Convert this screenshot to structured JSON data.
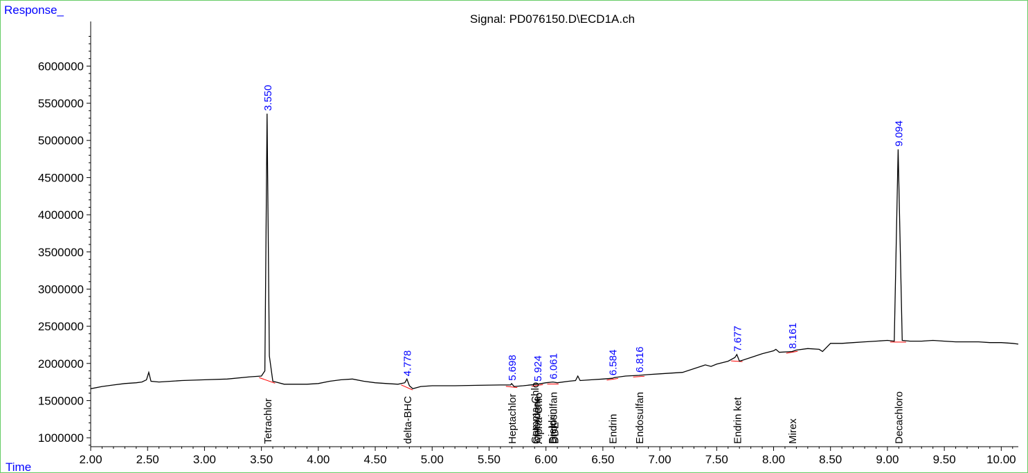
{
  "chart_data": {
    "type": "line",
    "title": "Signal: PD076150.D\\ECD1A.ch",
    "ylabel": "Response_",
    "xlabel": "Time",
    "xlim": [
      2.0,
      10.15
    ],
    "ylim": [
      880000,
      6600000
    ],
    "x_ticks": [
      "2.00",
      "2.50",
      "3.00",
      "3.50",
      "4.00",
      "4.50",
      "5.00",
      "5.50",
      "6.00",
      "6.50",
      "7.00",
      "7.50",
      "8.00",
      "8.50",
      "9.00",
      "9.50",
      "10.00"
    ],
    "x_tick_values": [
      2.0,
      2.5,
      3.0,
      3.5,
      4.0,
      4.5,
      5.0,
      5.5,
      6.0,
      6.5,
      7.0,
      7.5,
      8.0,
      8.5,
      9.0,
      9.5,
      10.0
    ],
    "y_ticks": [
      "1000000",
      "1500000",
      "2000000",
      "2500000",
      "3000000",
      "3500000",
      "4000000",
      "4500000",
      "5000000",
      "5500000",
      "6000000"
    ],
    "y_tick_values": [
      1000000,
      1500000,
      2000000,
      2500000,
      3000000,
      3500000,
      4000000,
      4500000,
      5000000,
      5500000,
      6000000
    ],
    "series": [
      {
        "x": [
          2.0,
          2.1,
          2.2,
          2.3,
          2.4,
          2.45,
          2.49,
          2.51,
          2.53,
          2.6,
          2.8,
          3.0,
          3.2,
          3.4,
          3.5,
          3.53,
          3.55,
          3.57,
          3.6,
          3.7,
          3.8,
          3.9,
          4.0,
          4.1,
          4.2,
          4.3,
          4.4,
          4.5,
          4.6,
          4.7,
          4.76,
          4.778,
          4.8,
          4.83,
          4.9,
          5.0,
          5.2,
          5.4,
          5.6,
          5.69,
          5.698,
          5.72,
          5.8,
          5.924,
          6.0,
          6.061,
          6.1,
          6.2,
          6.26,
          6.28,
          6.3,
          6.4,
          6.5,
          6.584,
          6.6,
          6.7,
          6.816,
          6.9,
          7.0,
          7.2,
          7.4,
          7.45,
          7.5,
          7.6,
          7.66,
          7.677,
          7.7,
          7.8,
          7.9,
          8.0,
          8.02,
          8.05,
          8.161,
          8.2,
          8.3,
          8.4,
          8.43,
          8.5,
          8.6,
          8.7,
          8.8,
          8.9,
          9.0,
          9.06,
          9.094,
          9.13,
          9.2,
          9.3,
          9.4,
          9.5,
          9.6,
          9.7,
          9.8,
          9.9,
          10.0,
          10.1,
          10.15
        ],
        "y": [
          1660000,
          1690000,
          1710000,
          1730000,
          1740000,
          1750000,
          1780000,
          1880000,
          1760000,
          1750000,
          1770000,
          1780000,
          1790000,
          1820000,
          1830000,
          1900000,
          5360000,
          2100000,
          1760000,
          1720000,
          1720000,
          1720000,
          1730000,
          1760000,
          1780000,
          1790000,
          1760000,
          1740000,
          1730000,
          1720000,
          1740000,
          1790000,
          1700000,
          1660000,
          1690000,
          1700000,
          1700000,
          1705000,
          1710000,
          1710000,
          1730000,
          1690000,
          1700000,
          1720000,
          1740000,
          1750000,
          1740000,
          1760000,
          1770000,
          1830000,
          1770000,
          1780000,
          1790000,
          1800000,
          1810000,
          1830000,
          1840000,
          1850000,
          1860000,
          1880000,
          1980000,
          1960000,
          1990000,
          2030000,
          2080000,
          2120000,
          2030000,
          2080000,
          2130000,
          2170000,
          2190000,
          2150000,
          2160000,
          2180000,
          2200000,
          2190000,
          2160000,
          2270000,
          2270000,
          2280000,
          2290000,
          2300000,
          2310000,
          2300000,
          4880000,
          2310000,
          2300000,
          2300000,
          2310000,
          2300000,
          2290000,
          2290000,
          2290000,
          2280000,
          2280000,
          2270000,
          2260000
        ]
      }
    ],
    "peak_labels": [
      {
        "rt": "3.550",
        "x": 3.55,
        "y": 5360000
      },
      {
        "rt": "4.778",
        "x": 4.778,
        "y": 1790000
      },
      {
        "rt": "5.698",
        "x": 5.698,
        "y": 1730000
      },
      {
        "rt": "5.924",
        "x": 5.924,
        "y": 1720000
      },
      {
        "rt": "6.061",
        "x": 6.061,
        "y": 1750000
      },
      {
        "rt": "6.584",
        "x": 6.584,
        "y": 1800000
      },
      {
        "rt": "6.816",
        "x": 6.816,
        "y": 1840000
      },
      {
        "rt": "7.677",
        "x": 7.677,
        "y": 2120000
      },
      {
        "rt": "8.161",
        "x": 8.161,
        "y": 2160000
      },
      {
        "rt": "9.094",
        "x": 9.094,
        "y": 4880000
      }
    ],
    "compound_labels": [
      {
        "name": "Tetrachlor",
        "x": 3.55
      },
      {
        "name": "delta-BHC",
        "x": 4.778
      },
      {
        "name": "Heptachlor",
        "x": 5.698
      },
      {
        "name": "Gamma-Chlo",
        "x": 5.9
      },
      {
        "name": "Chlordane",
        "x": 5.915
      },
      {
        "name": "Alpha-Chlo",
        "x": 5.93
      },
      {
        "name": "Dieldrin",
        "x": 6.05
      },
      {
        "name": "Endosulfan",
        "x": 6.061
      },
      {
        "name": "DDE",
        "x": 6.072
      },
      {
        "name": "Endrin",
        "x": 6.584
      },
      {
        "name": "Endosulfan",
        "x": 6.816
      },
      {
        "name": "Endrin ket",
        "x": 7.677
      },
      {
        "name": "Mirex",
        "x": 8.161
      },
      {
        "name": "Decachloro",
        "x": 9.094
      }
    ],
    "colors": {
      "trace": "#000000",
      "baseline": "#ff0000",
      "peak_label": "#0000ff",
      "axis_label": "#0000ff",
      "frame": "#66cc66"
    },
    "grid": false,
    "legend": "none"
  }
}
